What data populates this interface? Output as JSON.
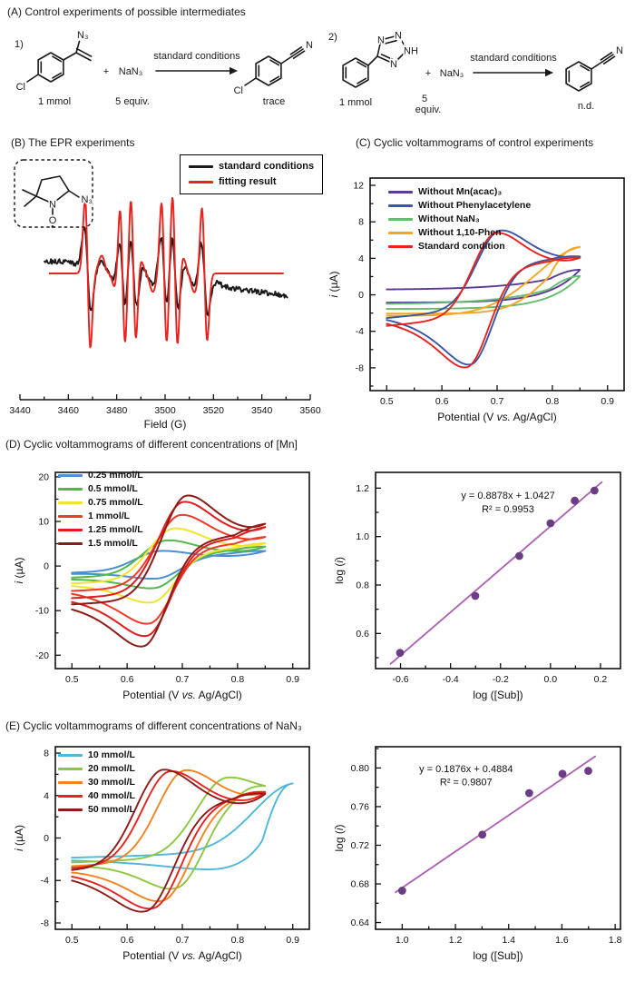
{
  "panels": {
    "A": {
      "title": "(A) Control experiments of possible intermediates",
      "rxn1": {
        "num": "1)",
        "plus": "+",
        "reagent": "NaN₃",
        "cond": "standard conditions",
        "amt1": "1 mmol",
        "amt2": "5 equiv.",
        "yield": "trace",
        "sub_azide": "N₃",
        "sub_cl": "Cl",
        "prod_cl": "Cl",
        "nitrile_n": "N"
      },
      "rxn2": {
        "num": "2)",
        "plus": "+",
        "reagent": "NaN₃",
        "cond": "standard conditions",
        "amt1": "1 mmol",
        "amt2a": "5",
        "amt2b": "equiv.",
        "yield": "n.d.",
        "n1": "N",
        "n2": "N",
        "nh": "NH",
        "n4": "N",
        "nitrile_n": "N"
      }
    },
    "B": {
      "title": "(B) The EPR experiments",
      "inset": {
        "n": "N",
        "o": "O",
        "n3": "N₃"
      }
    },
    "C": {
      "title": "(C) Cyclic voltammograms of control experiments"
    },
    "D": {
      "title": "(D) Cyclic voltammograms of different concentrations of [Mn]"
    },
    "E": {
      "title": "(E) Cyclic voltammograms of different concentrations of NaN₃"
    }
  },
  "chart_data": [
    {
      "id": "epr",
      "type": "line",
      "panel": "B",
      "xlabel": [
        {
          "t": "Field (G)"
        }
      ],
      "x_range": [
        3440,
        3560
      ],
      "xticks": {
        "vals": [
          3440,
          3460,
          3480,
          3500,
          3520,
          3540,
          3560
        ],
        "labels": [
          "3440",
          "3460",
          "3480",
          "3500",
          "3520",
          "3540",
          "3560"
        ],
        "minor": 10
      },
      "legend": [
        {
          "label": "standard conditions",
          "color": "#1a1a1a"
        },
        {
          "label": "fitting result",
          "color": "#e8231d"
        }
      ],
      "lines": [
        {
          "c": 3468.0,
          "a": 1.0,
          "w": 1.1
        },
        {
          "c": 3482.4,
          "a": 0.95,
          "w": 1.1
        },
        {
          "c": 3486.9,
          "a": 1.0,
          "w": 1.1
        },
        {
          "c": 3499.6,
          "a": 0.95,
          "w": 1.1
        },
        {
          "c": 3504.1,
          "a": 1.05,
          "w": 1.1
        },
        {
          "c": 3516.3,
          "a": 0.9,
          "w": 1.1
        },
        {
          "c": 3475.2,
          "a": 0.22,
          "w": 1.6
        },
        {
          "c": 3478.2,
          "a": 0.22,
          "w": 1.6
        },
        {
          "c": 3490.8,
          "a": 0.22,
          "w": 1.6
        },
        {
          "c": 3493.6,
          "a": 0.22,
          "w": 1.6
        },
        {
          "c": 3508.3,
          "a": 0.22,
          "w": 1.6
        },
        {
          "c": 3510.9,
          "a": 0.22,
          "w": 1.6
        }
      ],
      "fit_span": [
        3452,
        3549
      ],
      "exp_span": [
        3450,
        3551
      ],
      "exp_scale": 0.55,
      "exp_width_mult": 1.25,
      "noise_amp": 0.035,
      "drift": {
        "left_level": 0.16,
        "right_level": -0.17,
        "right_end": -0.3
      }
    },
    {
      "id": "cvC",
      "type": "cv",
      "panel": "C",
      "xlabel": [
        {
          "t": "Potential (V "
        },
        {
          "t": "vs.",
          "i": 1
        },
        {
          "t": " Ag/AgCl)"
        }
      ],
      "ylabel": [
        {
          "t": "i",
          "i": 1
        },
        {
          "t": " (µA)"
        }
      ],
      "x_range": [
        0.47,
        0.93
      ],
      "y_range": [
        -10.5,
        12.8
      ],
      "xticks": {
        "vals": [
          0.5,
          0.6,
          0.7,
          0.8,
          0.9
        ],
        "labels": [
          "0.5",
          "0.6",
          "0.7",
          "0.8",
          "0.9"
        ],
        "minor": 0.05
      },
      "yticks": {
        "vals": [
          -8,
          -4,
          0,
          4,
          8,
          12
        ],
        "labels": [
          "-8",
          "-4",
          "0",
          "4",
          "8",
          "12"
        ],
        "minor": 2
      },
      "sweep": [
        0.5,
        0.85
      ],
      "series": [
        {
          "name": "Without Mn(acac)₃",
          "color": "#5a3b94",
          "z": 0,
          "flat": {
            "f0": -0.85,
            "eF": 3.6,
            "ew": 0.055,
            "a0": 0.55,
            "eR": 2.2,
            "ew2": 0.09
          }
        },
        {
          "name": "Without Phenylacetylene",
          "color": "#3c55a5",
          "z": 1,
          "fwd": {
            "f0": -2.55,
            "fs": 6,
            "ipa": 8.3,
            "epa": 0.705,
            "wa": 0.042,
            "eF": 1.2,
            "ew": 0.05
          },
          "rev": {
            "a": 1.16,
            "b": 9.26,
            "ipc": -10.2,
            "epc": 0.652,
            "wc": 0.04
          }
        },
        {
          "name": "Without NaN₃",
          "color": "#63bd6c",
          "z": 0,
          "flat": {
            "f0": -1.55,
            "eF": 3.6,
            "ew": 0.055,
            "a0": -1.05,
            "eR": 3.1,
            "ew2": 0.09
          }
        },
        {
          "name": "Without 1,10-Phen",
          "color": "#f5a623",
          "z": 0,
          "fwd": {
            "f0": -2.3,
            "ipa": 7.6,
            "epa": 0.862,
            "wa": 0.09
          },
          "rev": {
            "a": -2.05,
            "ra": 7.85,
            "repa": 0.88,
            "rwa": 0.075
          }
        },
        {
          "name": "Standard condition",
          "color": "#e8231d",
          "z": 2,
          "fwd": {
            "f0": -3.4,
            "fs": 6,
            "ipa": 8.9,
            "epa": 0.698,
            "wa": 0.042,
            "eF": 1.8,
            "ew": 0.05
          },
          "rev": {
            "a": 0.9,
            "b": 9.4,
            "ipc": -10.2,
            "epc": 0.645,
            "wc": 0.04
          }
        }
      ]
    },
    {
      "id": "cvD",
      "type": "cv",
      "panel": "D",
      "xlabel": [
        {
          "t": "Potential (V "
        },
        {
          "t": "vs.",
          "i": 1
        },
        {
          "t": " Ag/AgCl)"
        }
      ],
      "ylabel": [
        {
          "t": "i",
          "i": 1
        },
        {
          "t": " (µA)"
        }
      ],
      "x_range": [
        0.47,
        0.93
      ],
      "y_range": [
        -23,
        21
      ],
      "xticks": {
        "vals": [
          0.5,
          0.6,
          0.7,
          0.8,
          0.9
        ],
        "labels": [
          "0.5",
          "0.6",
          "0.7",
          "0.8",
          "0.9"
        ],
        "minor": 0.05
      },
      "yticks": {
        "vals": [
          -20,
          -10,
          0,
          10,
          20
        ],
        "labels": [
          "-20",
          "-10",
          "0",
          "10",
          "20"
        ],
        "minor": 5
      },
      "sweep": [
        0.5,
        0.85
      ],
      "series": [
        {
          "name": "0.25 mmol/L",
          "color": "#4a90d2",
          "fwd": {
            "f0": -1.5,
            "fs": 4,
            "ipa": 4.2,
            "epa": 0.66,
            "wa": 0.045,
            "eF": 2.0,
            "ew": 0.05
          },
          "rev": {
            "a": -0.07,
            "b": 10.2,
            "ipc": -4.3,
            "epc": 0.655,
            "wc": 0.042
          }
        },
        {
          "name": "0.5 mmol/L",
          "color": "#52b848",
          "fwd": {
            "f0": -2.6,
            "fs": 4.5,
            "ipa": 7.5,
            "epa": 0.672,
            "wa": 0.045,
            "eF": 2.6,
            "ew": 0.05
          },
          "rev": {
            "a": -0.37,
            "b": 13.6,
            "ipc": -6.6,
            "epc": 0.65,
            "wc": 0.042
          }
        },
        {
          "name": "0.75 mmol/L",
          "color": "#efe52e",
          "fwd": {
            "f0": -3.9,
            "fs": 5,
            "ipa": 11.3,
            "epa": 0.685,
            "wa": 0.045,
            "eF": 2.8,
            "ew": 0.05
          },
          "rev": {
            "a": -0.32,
            "b": 14.9,
            "ipc": -10.0,
            "epc": 0.645,
            "wc": 0.042
          }
        },
        {
          "name": "1 mmol/L",
          "color": "#f13a28",
          "fwd": {
            "f0": -5.6,
            "fs": 6,
            "ipa": 15.7,
            "epa": 0.697,
            "wa": 0.045,
            "eF": 3.4,
            "ew": 0.05
          },
          "rev": {
            "a": 0.4,
            "b": 15.7,
            "ipc": -15.5,
            "epc": 0.64,
            "wc": 0.042
          }
        },
        {
          "name": "1.25 mmol/L",
          "color": "#de1d1d",
          "fwd": {
            "f0": -7.2,
            "fs": 6.5,
            "ipa": 20.0,
            "epa": 0.702,
            "wa": 0.045,
            "eF": 5.0,
            "ew": 0.05
          },
          "rev": {
            "a": 0.08,
            "b": 21.2,
            "ipc": -18.6,
            "epc": 0.636,
            "wc": 0.042
          }
        },
        {
          "name": "1.5 mmol/L",
          "color": "#8e1b17",
          "fwd": {
            "f0": -8.6,
            "fs": 7,
            "ipa": 22.6,
            "epa": 0.708,
            "wa": 0.045,
            "eF": 5.5,
            "ew": 0.05
          },
          "rev": {
            "a": -0.24,
            "b": 24.4,
            "ipc": -20.9,
            "epc": 0.63,
            "wc": 0.042
          }
        }
      ]
    },
    {
      "id": "fitD",
      "type": "scatter",
      "panel": "D",
      "xlabel": [
        {
          "t": "log ([Sub])"
        }
      ],
      "ylabel": [
        {
          "t": "log ("
        },
        {
          "t": "i",
          "i": 1
        },
        {
          "t": ")"
        }
      ],
      "x_range": [
        -0.7,
        0.28
      ],
      "y_range": [
        0.455,
        1.265
      ],
      "xticks": {
        "vals": [
          -0.6,
          -0.4,
          -0.2,
          0,
          0.2
        ],
        "labels": [
          "-0.6",
          "-0.4",
          "-0.2",
          "0.0",
          "0.2"
        ],
        "minor": 0.1
      },
      "yticks": {
        "vals": [
          0.6,
          0.8,
          1.0,
          1.2
        ],
        "labels": [
          "0.6",
          "0.8",
          "1.0",
          "1.2"
        ],
        "minor": 0.1
      },
      "points": {
        "x": [
          -0.602,
          -0.301,
          -0.125,
          0,
          0.097,
          0.176
        ],
        "y": [
          0.52,
          0.755,
          0.92,
          1.055,
          1.148,
          1.19
        ]
      },
      "fit": {
        "slope": 0.8878,
        "intercept": 1.0427,
        "span": [
          -0.64,
          0.205
        ]
      },
      "annot": {
        "x": -0.17,
        "y": [
          1.157,
          1.1
        ],
        "lines": [
          "y = 0.8878x + 1.0427",
          "R² = 0.9953"
        ]
      },
      "point_color": "#6a3d84",
      "line_color": "#aa5fb0"
    },
    {
      "id": "cvE",
      "type": "cv",
      "panel": "E",
      "xlabel": [
        {
          "t": "Potential (V "
        },
        {
          "t": "vs.",
          "i": 1
        },
        {
          "t": " Ag/AgCl)"
        }
      ],
      "ylabel": [
        {
          "t": "i",
          "i": 1
        },
        {
          "t": " (µA)"
        }
      ],
      "x_range": [
        0.47,
        0.93
      ],
      "y_range": [
        -8.6,
        8.6
      ],
      "xticks": {
        "vals": [
          0.5,
          0.6,
          0.7,
          0.8,
          0.9
        ],
        "labels": [
          "0.5",
          "0.6",
          "0.7",
          "0.8",
          "0.9"
        ],
        "minor": 0.05
      },
      "yticks": {
        "vals": [
          -8,
          -4,
          0,
          4,
          8
        ],
        "labels": [
          "-8",
          "-4",
          "0",
          "4",
          "8"
        ],
        "minor": 2
      },
      "sweep": [
        0.5,
        0.85
      ],
      "series": [
        {
          "name": "10 mmol/L",
          "color": "#4fb8d8",
          "x1": 0.9,
          "fwd": {
            "f0": -1.85,
            "fs": 1.5,
            "ipa": 6.4,
            "epa": 0.905,
            "wa": 0.075
          },
          "rev": {
            "a": -1.61,
            "ra": 7.4,
            "repa": 0.92,
            "rwa": 0.045,
            "ipc": -1.35,
            "epc": 0.75,
            "wc": 0.065
          }
        },
        {
          "name": "20 mmol/L",
          "color": "#8dc63f",
          "fwd": {
            "f0": -2.3,
            "fs": 2,
            "ipa": 7.2,
            "epa": 0.78,
            "wa": 0.055,
            "eF": 0.9,
            "ew": 0.05
          },
          "rev": {
            "a": 0.195,
            "b": 13.9,
            "ipc": -7.54,
            "epc": 0.69,
            "wc": 0.05
          }
        },
        {
          "name": "30 mmol/L",
          "color": "#f58220",
          "fwd": {
            "f0": -2.65,
            "fs": 2.5,
            "ipa": 8.4,
            "epa": 0.705,
            "wa": 0.05,
            "eF": 2.1,
            "ew": 0.05
          },
          "rev": {
            "a": 0.29,
            "b": 12.2,
            "ipc": -8.2,
            "epc": 0.665,
            "wc": 0.05
          }
        },
        {
          "name": "40 mmol/L",
          "color": "#e8231d",
          "fwd": {
            "f0": -2.85,
            "fs": 2.5,
            "ipa": 8.6,
            "epa": 0.678,
            "wa": 0.05,
            "eF": 2.7,
            "ew": 0.05
          },
          "rev": {
            "a": 0.51,
            "b": 11.4,
            "ipc": -8.8,
            "epc": 0.648,
            "wc": 0.05
          }
        },
        {
          "name": "50 mmol/L",
          "color": "#8e1b17",
          "fwd": {
            "f0": -3.05,
            "fs": 2.5,
            "ipa": 9.0,
            "epa": 0.665,
            "wa": 0.05,
            "eF": 2.8,
            "ew": 0.05
          },
          "rev": {
            "a": 0.515,
            "b": 11.1,
            "ipc": -8.9,
            "epc": 0.634,
            "wc": 0.05
          }
        }
      ]
    },
    {
      "id": "fitE",
      "type": "scatter",
      "panel": "E",
      "xlabel": [
        {
          "t": "log ([Sub])"
        }
      ],
      "ylabel": [
        {
          "t": "log ("
        },
        {
          "t": "i",
          "i": 1
        },
        {
          "t": ")"
        }
      ],
      "x_range": [
        0.9,
        1.82
      ],
      "y_range": [
        0.633,
        0.822
      ],
      "xticks": {
        "vals": [
          1.0,
          1.2,
          1.4,
          1.6,
          1.8
        ],
        "labels": [
          "1.0",
          "1.2",
          "1.4",
          "1.6",
          "1.8"
        ],
        "minor": 0.1
      },
      "yticks": {
        "vals": [
          0.64,
          0.68,
          0.72,
          0.76,
          0.8
        ],
        "labels": [
          "0.64",
          "0.68",
          "0.72",
          "0.76",
          "0.80"
        ],
        "minor": 0.02
      },
      "points": {
        "x": [
          1.0,
          1.301,
          1.477,
          1.602,
          1.699
        ],
        "y": [
          0.673,
          0.731,
          0.774,
          0.794,
          0.797
        ]
      },
      "fit": {
        "slope": 0.1876,
        "intercept": 0.4884,
        "span": [
          0.975,
          1.725
        ]
      },
      "annot": {
        "x": 1.24,
        "y": [
          0.7955,
          0.782
        ],
        "lines": [
          "y = 0.1876x + 0.4884",
          "R² = 0.9807"
        ]
      },
      "point_color": "#6a3d84",
      "line_color": "#aa5fb0"
    }
  ]
}
